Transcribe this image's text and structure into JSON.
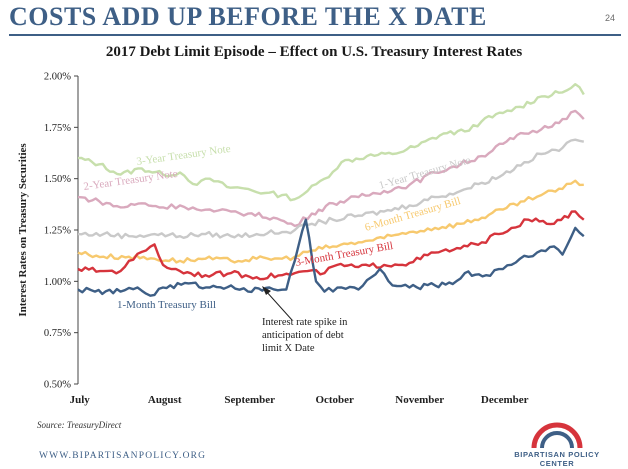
{
  "header": {
    "title": "COSTS ADD UP BEFORE THE X DATE",
    "page_number": "24"
  },
  "footer": {
    "source": "Source: TreasuryDirect",
    "url": "WWW.BIPARTISANPOLICY.ORG",
    "logo_text": "BIPARTISAN POLICY CENTER"
  },
  "colors": {
    "brand": "#3e5f86",
    "one_month": "#3e5f86",
    "three_month": "#d6343c",
    "six_month": "#f7c96e",
    "one_year": "#c9c9c9",
    "two_year": "#d9a9bd",
    "three_year": "#c7dfac"
  },
  "chart_data": {
    "type": "line",
    "title": "2017 Debt Limit Episode – Effect on U.S. Treasury Interest Rates",
    "xlabel": "",
    "ylabel": "Interest Rates on Treasury Securities",
    "ylim": [
      0.5,
      2.0
    ],
    "yticks": [
      "0.50%",
      "0.75%",
      "1.00%",
      "1.25%",
      "1.50%",
      "1.75%",
      "2.00%"
    ],
    "x_range": [
      0,
      6
    ],
    "x_ticks": [
      "July",
      "August",
      "September",
      "October",
      "November",
      "December"
    ],
    "grid": false,
    "legend": "inline labels",
    "series": [
      {
        "name": "3-Year Treasury Note",
        "color": "#c7dfac",
        "points": [
          [
            0,
            1.6
          ],
          [
            0.25,
            1.57
          ],
          [
            0.5,
            1.52
          ],
          [
            0.75,
            1.55
          ],
          [
            1.0,
            1.52
          ],
          [
            1.2,
            1.53
          ],
          [
            1.4,
            1.47
          ],
          [
            1.55,
            1.5
          ],
          [
            1.75,
            1.46
          ],
          [
            2.0,
            1.45
          ],
          [
            2.2,
            1.43
          ],
          [
            2.4,
            1.42
          ],
          [
            2.55,
            1.4
          ],
          [
            2.7,
            1.44
          ],
          [
            2.9,
            1.5
          ],
          [
            3.1,
            1.58
          ],
          [
            3.4,
            1.61
          ],
          [
            3.7,
            1.62
          ],
          [
            4.0,
            1.66
          ],
          [
            4.3,
            1.72
          ],
          [
            4.55,
            1.73
          ],
          [
            4.75,
            1.78
          ],
          [
            5.0,
            1.82
          ],
          [
            5.2,
            1.85
          ],
          [
            5.45,
            1.9
          ],
          [
            5.7,
            1.92
          ],
          [
            5.85,
            1.96
          ],
          [
            5.95,
            1.91
          ]
        ]
      },
      {
        "name": "2-Year Treasury Note",
        "color": "#d9a9bd",
        "points": [
          [
            0,
            1.41
          ],
          [
            0.25,
            1.39
          ],
          [
            0.5,
            1.36
          ],
          [
            0.75,
            1.38
          ],
          [
            1.0,
            1.36
          ],
          [
            1.2,
            1.37
          ],
          [
            1.4,
            1.35
          ],
          [
            1.6,
            1.34
          ],
          [
            1.8,
            1.34
          ],
          [
            2.0,
            1.33
          ],
          [
            2.3,
            1.31
          ],
          [
            2.55,
            1.27
          ],
          [
            2.75,
            1.33
          ],
          [
            3.0,
            1.38
          ],
          [
            3.3,
            1.41
          ],
          [
            3.6,
            1.44
          ],
          [
            3.9,
            1.47
          ],
          [
            4.2,
            1.53
          ],
          [
            4.5,
            1.57
          ],
          [
            4.75,
            1.61
          ],
          [
            5.0,
            1.67
          ],
          [
            5.25,
            1.72
          ],
          [
            5.45,
            1.74
          ],
          [
            5.7,
            1.79
          ],
          [
            5.85,
            1.83
          ],
          [
            5.95,
            1.79
          ]
        ]
      },
      {
        "name": "1-Year Treasury Note",
        "color": "#c9c9c9",
        "points": [
          [
            0,
            1.23
          ],
          [
            0.3,
            1.23
          ],
          [
            0.6,
            1.22
          ],
          [
            0.9,
            1.23
          ],
          [
            1.2,
            1.22
          ],
          [
            1.5,
            1.23
          ],
          [
            1.8,
            1.22
          ],
          [
            2.1,
            1.23
          ],
          [
            2.4,
            1.24
          ],
          [
            2.55,
            1.25
          ],
          [
            2.75,
            1.28
          ],
          [
            3.0,
            1.3
          ],
          [
            3.3,
            1.32
          ],
          [
            3.6,
            1.34
          ],
          [
            3.9,
            1.37
          ],
          [
            4.2,
            1.41
          ],
          [
            4.5,
            1.44
          ],
          [
            4.75,
            1.48
          ],
          [
            5.0,
            1.52
          ],
          [
            5.25,
            1.58
          ],
          [
            5.45,
            1.62
          ],
          [
            5.7,
            1.65
          ],
          [
            5.85,
            1.69
          ],
          [
            5.95,
            1.68
          ]
        ]
      },
      {
        "name": "6-Month Treasury Bill",
        "color": "#f7c96e",
        "points": [
          [
            0,
            1.14
          ],
          [
            0.3,
            1.12
          ],
          [
            0.6,
            1.12
          ],
          [
            0.9,
            1.11
          ],
          [
            1.2,
            1.1
          ],
          [
            1.5,
            1.11
          ],
          [
            1.8,
            1.1
          ],
          [
            2.1,
            1.11
          ],
          [
            2.4,
            1.11
          ],
          [
            2.55,
            1.12
          ],
          [
            2.75,
            1.15
          ],
          [
            3.0,
            1.17
          ],
          [
            3.3,
            1.19
          ],
          [
            3.6,
            1.21
          ],
          [
            3.9,
            1.24
          ],
          [
            4.2,
            1.26
          ],
          [
            4.5,
            1.28
          ],
          [
            4.75,
            1.31
          ],
          [
            5.0,
            1.35
          ],
          [
            5.25,
            1.39
          ],
          [
            5.45,
            1.42
          ],
          [
            5.7,
            1.45
          ],
          [
            5.85,
            1.49
          ],
          [
            5.95,
            1.47
          ]
        ]
      },
      {
        "name": "3-Month Treasury Bill",
        "color": "#d6343c",
        "points": [
          [
            0,
            1.06
          ],
          [
            0.3,
            1.05
          ],
          [
            0.5,
            1.05
          ],
          [
            0.6,
            1.1
          ],
          [
            0.8,
            1.15
          ],
          [
            0.9,
            1.18
          ],
          [
            1.0,
            1.08
          ],
          [
            1.2,
            1.05
          ],
          [
            1.5,
            1.03
          ],
          [
            1.8,
            1.04
          ],
          [
            2.1,
            1.02
          ],
          [
            2.4,
            1.03
          ],
          [
            2.55,
            1.04
          ],
          [
            2.7,
            1.05
          ],
          [
            2.9,
            1.04
          ],
          [
            3.05,
            1.08
          ],
          [
            3.3,
            1.07
          ],
          [
            3.6,
            1.08
          ],
          [
            3.9,
            1.09
          ],
          [
            4.2,
            1.14
          ],
          [
            4.5,
            1.16
          ],
          [
            4.75,
            1.19
          ],
          [
            4.95,
            1.23
          ],
          [
            5.1,
            1.26
          ],
          [
            5.3,
            1.3
          ],
          [
            5.6,
            1.28
          ],
          [
            5.85,
            1.34
          ],
          [
            5.95,
            1.3
          ]
        ]
      },
      {
        "name": "1-Month Treasury Bill",
        "color": "#3e5f86",
        "points": [
          [
            0,
            0.96
          ],
          [
            0.2,
            0.95
          ],
          [
            0.5,
            0.95
          ],
          [
            0.7,
            0.97
          ],
          [
            0.85,
            0.93
          ],
          [
            1.0,
            0.97
          ],
          [
            1.3,
            0.99
          ],
          [
            1.55,
            0.97
          ],
          [
            1.8,
            0.98
          ],
          [
            2.0,
            0.95
          ],
          [
            2.25,
            0.97
          ],
          [
            2.45,
            0.96
          ],
          [
            2.55,
            1.1
          ],
          [
            2.68,
            1.3
          ],
          [
            2.8,
            1.0
          ],
          [
            2.9,
            0.95
          ],
          [
            3.1,
            0.97
          ],
          [
            3.3,
            0.96
          ],
          [
            3.45,
            1.02
          ],
          [
            3.55,
            1.06
          ],
          [
            3.7,
            0.98
          ],
          [
            3.9,
            0.97
          ],
          [
            4.2,
            0.98
          ],
          [
            4.45,
            1.0
          ],
          [
            4.55,
            1.04
          ],
          [
            4.8,
            1.03
          ],
          [
            5.0,
            1.06
          ],
          [
            5.2,
            1.11
          ],
          [
            5.4,
            1.14
          ],
          [
            5.6,
            1.17
          ],
          [
            5.7,
            1.13
          ],
          [
            5.85,
            1.26
          ],
          [
            5.95,
            1.22
          ]
        ]
      }
    ],
    "annotations": [
      {
        "text": [
          "Interest rate spike in",
          "anticipation of debt",
          "limit X Date"
        ]
      }
    ]
  }
}
